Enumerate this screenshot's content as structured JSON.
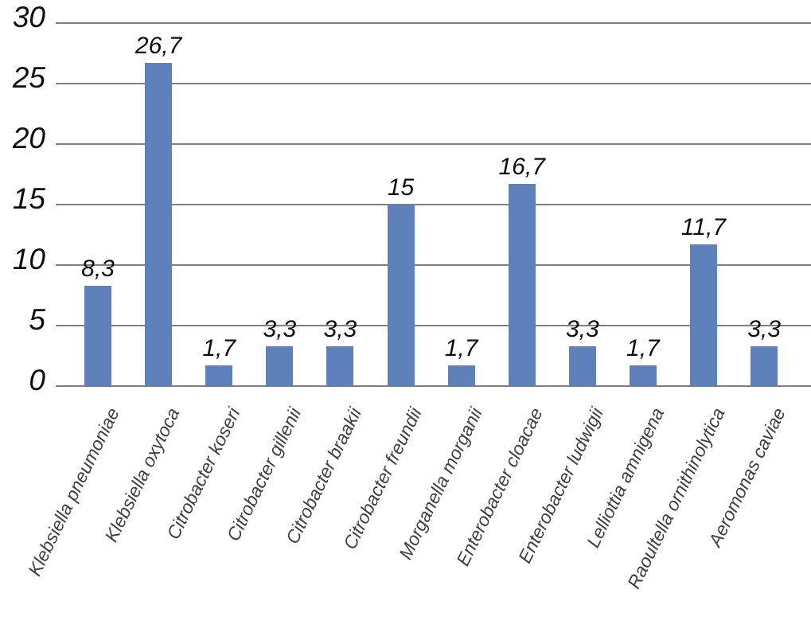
{
  "chart_data": {
    "type": "bar",
    "title": "",
    "xlabel": "",
    "ylabel": "",
    "categories": [
      "Klebsiella pneumoniae",
      "Klebsiella oxytoca",
      "Citrobacter koseri",
      "Citrobacter gillenii",
      "Citrobacter braakii",
      "Citrobacter freundii",
      "Morganella morganii",
      "Enterobacter cloacae",
      "Enterobacter ludwigii",
      "Lelliottia amnigena",
      "Raoultella ornithinolytica",
      "Aeromonas caviae"
    ],
    "values": [
      8.3,
      26.7,
      1.7,
      3.3,
      3.3,
      15,
      1.7,
      16.7,
      3.3,
      1.7,
      11.7,
      3.3
    ],
    "value_labels": [
      "8,3",
      "26,7",
      "1,7",
      "3,3",
      "3,3",
      "15",
      "1,7",
      "16,7",
      "3,3",
      "1,7",
      "11,7",
      "3,3"
    ],
    "y_ticks": [
      0,
      5,
      10,
      15,
      20,
      25,
      30
    ],
    "y_tick_labels": [
      "0",
      "5",
      "10",
      "15",
      "20",
      "25",
      "30"
    ],
    "ylim": [
      0,
      30
    ],
    "grid": "horizontal",
    "legend": "none",
    "decimal_separator": ",",
    "bar_color": "#5E81BC",
    "gridline_color": "#7F7F7F",
    "value_label_color": "#0D0D0D",
    "tick_label_color": "#0D0D0D",
    "category_label_color": "#3F3F3F"
  }
}
